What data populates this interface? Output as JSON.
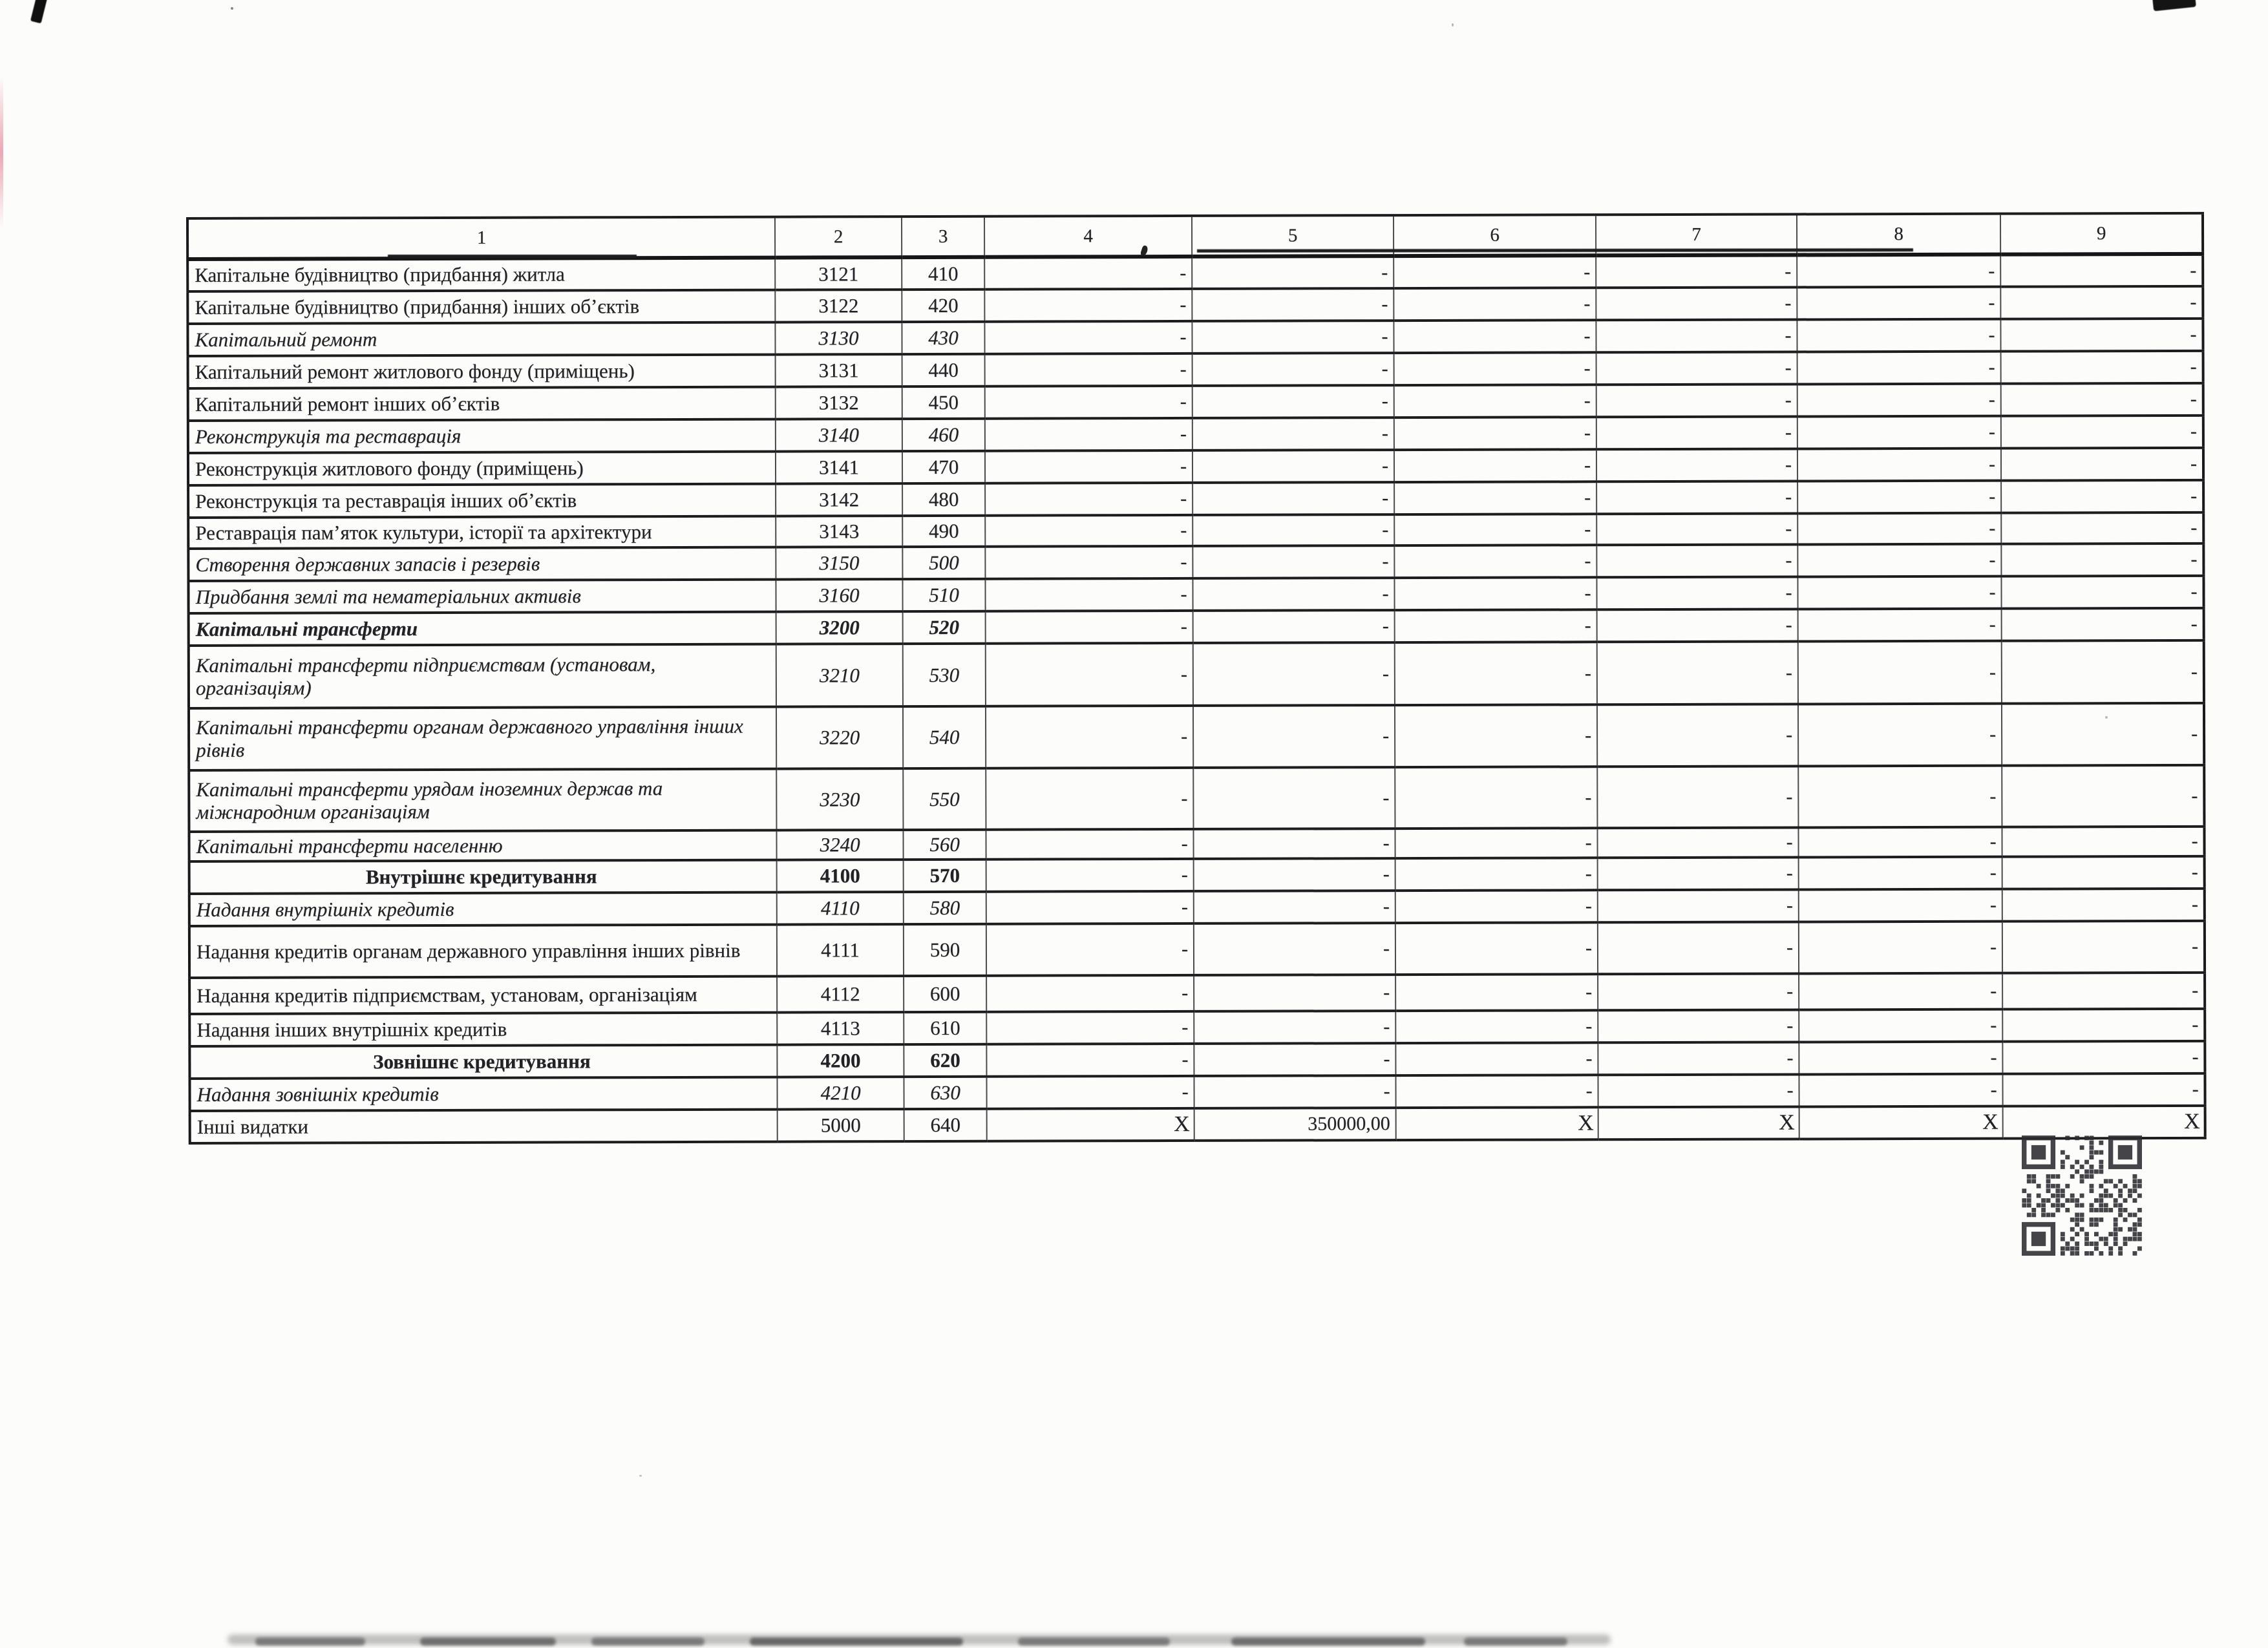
{
  "document": {
    "colors": {
      "ink": "#222226",
      "paper": "#fcfcfa"
    },
    "table": {
      "header_cells": [
        "1",
        "2",
        "3",
        "4",
        "5",
        "6",
        "7",
        "8",
        "9"
      ],
      "rows": [
        {
          "name": "Капітальне будівництво (придбання) житла",
          "code": "3121",
          "line": "410",
          "variant": "regular",
          "values": [
            "-",
            "-",
            "-",
            "-",
            "-",
            "-"
          ]
        },
        {
          "name": "Капітальне  будівництво (придбання) інших об’єктів",
          "code": "3122",
          "line": "420",
          "variant": "regular",
          "values": [
            "-",
            "-",
            "-",
            "-",
            "-",
            "-"
          ]
        },
        {
          "name": "Капітальний ремонт",
          "code": "3130",
          "line": "430",
          "variant": "italic",
          "values": [
            "-",
            "-",
            "-",
            "-",
            "-",
            "-"
          ]
        },
        {
          "name": "Капітальний ремонт житлового фонду (приміщень)",
          "code": "3131",
          "line": "440",
          "variant": "regular",
          "values": [
            "-",
            "-",
            "-",
            "-",
            "-",
            "-"
          ]
        },
        {
          "name": "Капітальний ремонт інших об’єктів",
          "code": "3132",
          "line": "450",
          "variant": "regular",
          "values": [
            "-",
            "-",
            "-",
            "-",
            "-",
            "-"
          ]
        },
        {
          "name": "Реконструкція  та  реставрація",
          "code": "3140",
          "line": "460",
          "variant": "italic",
          "values": [
            "-",
            "-",
            "-",
            "-",
            "-",
            "-"
          ]
        },
        {
          "name": "Реконструкція житлового фонду (приміщень)",
          "code": "3141",
          "line": "470",
          "variant": "regular",
          "values": [
            "-",
            "-",
            "-",
            "-",
            "-",
            "-"
          ]
        },
        {
          "name": "Реконструкція та реставрація  інших об’єктів",
          "code": "3142",
          "line": "480",
          "variant": "regular",
          "values": [
            "-",
            "-",
            "-",
            "-",
            "-",
            "-"
          ]
        },
        {
          "name": "Реставрація пам’яток культури, історії та архітектури",
          "code": "3143",
          "line": "490",
          "variant": "regular",
          "values": [
            "-",
            "-",
            "-",
            "-",
            "-",
            "-"
          ]
        },
        {
          "name": "Створення державних запасів і резервів",
          "code": "3150",
          "line": "500",
          "variant": "italic",
          "values": [
            "-",
            "-",
            "-",
            "-",
            "-",
            "-"
          ]
        },
        {
          "name": "Придбання землі  та нематеріальних активів",
          "code": "3160",
          "line": "510",
          "variant": "italic",
          "values": [
            "-",
            "-",
            "-",
            "-",
            "-",
            "-"
          ]
        },
        {
          "name": "Капітальні трансферти",
          "code": "3200",
          "line": "520",
          "variant": "bold-italic",
          "values": [
            "-",
            "-",
            "-",
            "-",
            "-",
            "-"
          ]
        },
        {
          "name": "Капітальні трансферти підприємствам (установам,\nорганізаціям)",
          "code": "3210",
          "line": "530",
          "variant": "italic",
          "values": [
            "-",
            "-",
            "-",
            "-",
            "-",
            "-"
          ]
        },
        {
          "name": "Капітальні трансферти органам державного управління інших\nрівнів",
          "code": "3220",
          "line": "540",
          "variant": "italic",
          "values": [
            "-",
            "-",
            "-",
            "-",
            "-",
            "-"
          ]
        },
        {
          "name": "Капітальні трансферти  урядам іноземних держав та\nміжнародним організаціям",
          "code": "3230",
          "line": "550",
          "variant": "italic",
          "values": [
            "-",
            "-",
            "-",
            "-",
            "-",
            "-"
          ]
        },
        {
          "name": "Капітальні трансферти населенню",
          "code": "3240",
          "line": "560",
          "variant": "italic",
          "values": [
            "-",
            "-",
            "-",
            "-",
            "-",
            "-"
          ]
        },
        {
          "name": "Внутрішнє кредитування",
          "code": "4100",
          "line": "570",
          "variant": "bold-center",
          "values": [
            "-",
            "-",
            "-",
            "-",
            "-",
            "-"
          ]
        },
        {
          "name": "Надання внутрішніх кредитів",
          "code": "4110",
          "line": "580",
          "variant": "italic",
          "values": [
            "-",
            "-",
            "-",
            "-",
            "-",
            "-"
          ]
        },
        {
          "name": "Надання кредитів органам державного управління інших рівнів",
          "code": "4111",
          "line": "590",
          "variant": "regular",
          "values": [
            "-",
            "-",
            "-",
            "-",
            "-",
            "-"
          ]
        },
        {
          "name": "Надання кредитів підприємствам, установам, організаціям",
          "code": "4112",
          "line": "600",
          "variant": "regular",
          "values": [
            "-",
            "-",
            "-",
            "-",
            "-",
            "-"
          ]
        },
        {
          "name": "Надання інших внутрішніх кредитів",
          "code": "4113",
          "line": "610",
          "variant": "regular",
          "values": [
            "-",
            "-",
            "-",
            "-",
            "-",
            "-"
          ]
        },
        {
          "name": "Зовнішнє кредитування",
          "code": "4200",
          "line": "620",
          "variant": "bold-center",
          "values": [
            "-",
            "-",
            "-",
            "-",
            "-",
            "-"
          ]
        },
        {
          "name": "Надання зовнішніх кредитів",
          "code": "4210",
          "line": "630",
          "variant": "italic",
          "values": [
            "-",
            "-",
            "-",
            "-",
            "-",
            "-"
          ]
        },
        {
          "name": "Інші видатки",
          "code": "5000",
          "line": "640",
          "variant": "regular",
          "values": [
            "X",
            "350000,00",
            "X",
            "X",
            "X",
            "X"
          ]
        }
      ]
    }
  }
}
